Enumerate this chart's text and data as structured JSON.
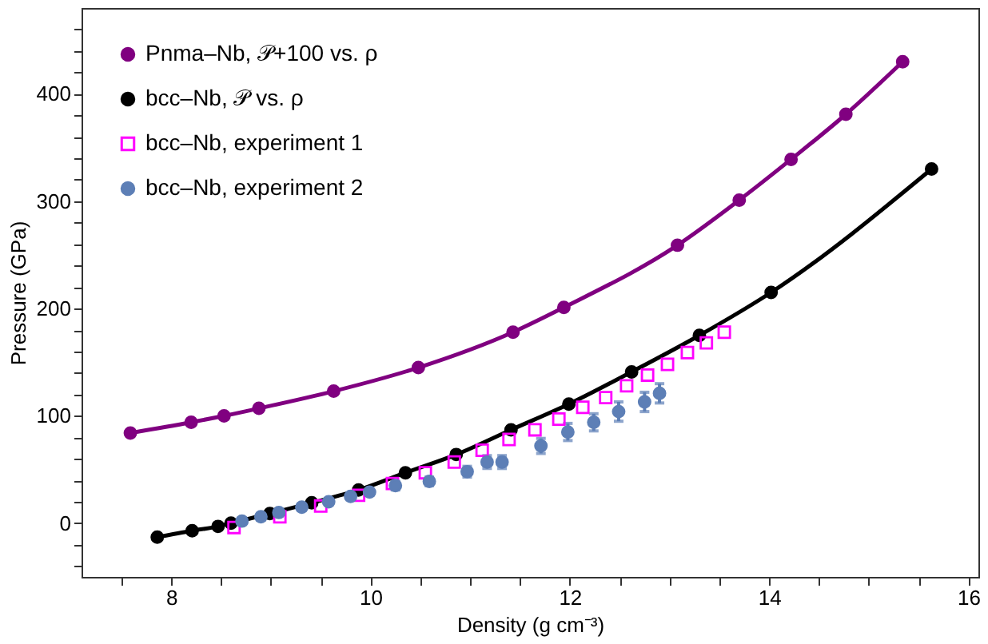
{
  "chart_data": {
    "type": "line",
    "xlabel": "Density (g cm⁻³)",
    "ylabel": "Pressure (GPa)",
    "xlim": [
      7.1,
      16.1
    ],
    "ylim": [
      -50,
      480
    ],
    "xticks": [
      {
        "value": 7.5,
        "label": null
      },
      8,
      {
        "value": 8.5,
        "label": null
      },
      {
        "value": 9,
        "label": null
      },
      {
        "value": 9.5,
        "label": null
      },
      10,
      {
        "value": 10.5,
        "label": null
      },
      {
        "value": 11,
        "label": null
      },
      {
        "value": 11.5,
        "label": null
      },
      12,
      {
        "value": 12.5,
        "label": null
      },
      {
        "value": 13,
        "label": null
      },
      {
        "value": 13.5,
        "label": null
      },
      14,
      {
        "value": 14.5,
        "label": null
      },
      {
        "value": 15,
        "label": null
      },
      {
        "value": 15.5,
        "label": null
      },
      16
    ],
    "yticks": [
      {
        "value": -40,
        "label": null
      },
      {
        "value": -20,
        "label": null
      },
      0,
      {
        "value": 20,
        "label": null
      },
      {
        "value": 40,
        "label": null
      },
      {
        "value": 60,
        "label": null
      },
      {
        "value": 80,
        "label": null
      },
      100,
      {
        "value": 120,
        "label": null
      },
      {
        "value": 140,
        "label": null
      },
      {
        "value": 160,
        "label": null
      },
      {
        "value": 180,
        "label": null
      },
      200,
      {
        "value": 220,
        "label": null
      },
      {
        "value": 240,
        "label": null
      },
      {
        "value": 260,
        "label": null
      },
      {
        "value": 280,
        "label": null
      },
      300,
      {
        "value": 320,
        "label": null
      },
      {
        "value": 340,
        "label": null
      },
      {
        "value": 360,
        "label": null
      },
      {
        "value": 380,
        "label": null
      },
      400,
      {
        "value": 420,
        "label": null
      },
      {
        "value": 440,
        "label": null
      },
      {
        "value": 460,
        "label": null
      }
    ],
    "grid": false,
    "legend": "top left",
    "line_style": "solid",
    "series": [
      {
        "name": "Pnma–Nb, 𝒫+100 vs. ρ",
        "type": "line",
        "marker": "circle",
        "color": "#800080",
        "x": [
          7.59,
          8.2,
          8.53,
          8.88,
          9.63,
          10.48,
          11.43,
          11.94,
          13.08,
          13.7,
          14.22,
          14.77,
          15.34
        ],
        "values": [
          84,
          94,
          100,
          107,
          123,
          145,
          178,
          201,
          259,
          301,
          339,
          381,
          430
        ]
      },
      {
        "name": "bcc–Nb, 𝒫 vs. ρ",
        "type": "line",
        "marker": "circle",
        "color": "#000000",
        "x": [
          7.86,
          8.21,
          8.47,
          8.6,
          8.99,
          9.41,
          9.88,
          10.35,
          10.86,
          11.41,
          11.99,
          12.62,
          13.3,
          14.02,
          15.63
        ],
        "values": [
          -13,
          -7,
          -3,
          0,
          9,
          19,
          31,
          47,
          64,
          87,
          111,
          141,
          175,
          215,
          330
        ]
      },
      {
        "name": "bcc–Nb, experiment 1",
        "type": "scatter",
        "marker": "square",
        "color": "#ff00ff",
        "x": [
          8.63,
          9.09,
          9.5,
          9.88,
          10.22,
          10.55,
          10.84,
          11.12,
          11.39,
          11.65,
          11.89,
          12.13,
          12.36,
          12.57,
          12.78,
          12.98,
          13.18,
          13.37,
          13.55
        ],
        "values": [
          -4,
          6,
          16,
          26,
          37,
          47,
          57,
          68,
          78,
          87,
          97,
          108,
          117,
          128,
          138,
          148,
          159,
          168,
          178
        ]
      },
      {
        "name": "bcc–Nb, experiment 2",
        "type": "scatter",
        "marker": "circle",
        "color": "#5d7fb6",
        "x": [
          8.71,
          8.9,
          9.08,
          9.31,
          9.58,
          9.8,
          9.99,
          10.25,
          10.59,
          10.97,
          11.17,
          11.32,
          11.71,
          11.98,
          12.24,
          12.49,
          12.75,
          12.9
        ],
        "values": [
          2,
          6,
          10,
          15,
          20,
          25,
          29,
          35,
          39,
          48,
          57,
          57,
          72,
          85,
          94,
          104,
          113,
          121
        ],
        "errors": [
          3,
          3,
          3,
          3,
          3,
          3,
          3,
          4,
          4,
          5,
          6,
          6,
          7,
          8,
          8,
          9,
          9,
          9
        ]
      }
    ]
  }
}
